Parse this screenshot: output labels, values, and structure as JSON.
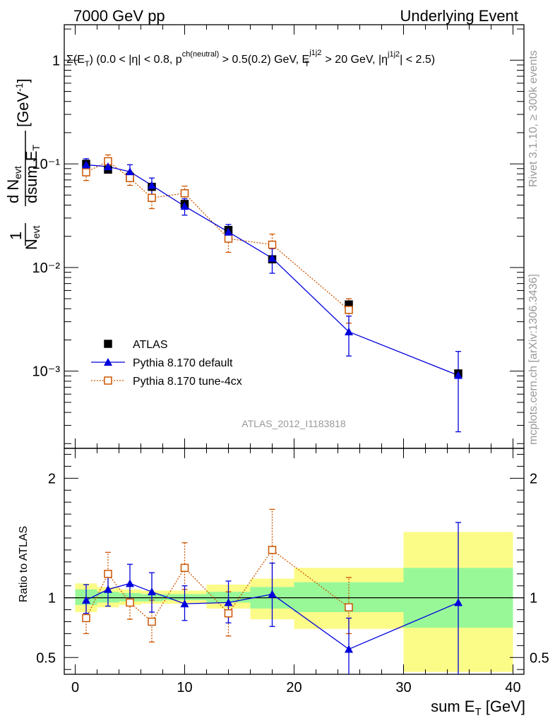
{
  "header": {
    "left": "7000 GeV pp",
    "right": "Underlying Event"
  },
  "side_labels": {
    "rivet": "Rivet 3.1.10, ≥ 300k events",
    "mcplots": "mcplots.cern.ch [arXiv:1306.3436]"
  },
  "analysis_label": "ATLAS_2012_I1183818",
  "colors": {
    "data": "#000000",
    "default": "#0000dd",
    "tune": "#cc5500",
    "band_inner": "#98f898",
    "band_outer": "#fbfb88"
  },
  "chart_data": [
    {
      "type": "scatter",
      "panel": "main",
      "annotation": "Σ(E_T) (0.0 < |η| < 0.8, p_T^ch(neutral) > 0.5(0.2) GeV, E_T^j1j2 > 20 GeV, |η^j1j2| < 2.5)",
      "ylabel": "1/N_evt dN_evt/dsum E_T [GeV^-1]",
      "xlim": [
        -1,
        41
      ],
      "ylim": [
        0.00018,
        2.2
      ],
      "yscale": "log",
      "yticks": [
        "10⁻³",
        "10⁻²",
        "10⁻¹",
        "1"
      ],
      "legend_position": "lower-left",
      "series": [
        {
          "name": "ATLAS",
          "x": [
            1,
            3,
            5,
            7,
            10,
            14,
            18,
            25,
            35
          ],
          "y": [
            0.1,
            0.088,
            0.075,
            0.06,
            0.041,
            0.023,
            0.012,
            0.0044,
            0.00095
          ]
        },
        {
          "name": "Pythia 8.170 default",
          "x": [
            1,
            3,
            5,
            7,
            10,
            14,
            18,
            25,
            35
          ],
          "y": [
            0.098,
            0.094,
            0.084,
            0.062,
            0.039,
            0.022,
            0.0123,
            0.0024,
            0.00091
          ],
          "yerr_low": [
            0.087,
            0.086,
            0.072,
            0.05,
            0.032,
            0.019,
            0.0088,
            0.0014,
            0.00026
          ],
          "yerr_high": [
            0.112,
            0.102,
            0.098,
            0.073,
            0.046,
            0.026,
            0.0152,
            0.0034,
            0.00155
          ]
        },
        {
          "name": "Pythia 8.170 tune-4cx",
          "x": [
            1,
            3,
            5,
            7,
            10,
            14,
            18,
            25,
            35
          ],
          "y": [
            0.083,
            0.106,
            0.073,
            0.047,
            0.052,
            0.019,
            0.0166,
            0.0039,
            null
          ],
          "yerr_low": [
            0.069,
            0.092,
            0.062,
            0.037,
            0.044,
            0.014,
            0.0122,
            0.0029,
            null
          ],
          "yerr_high": [
            0.098,
            0.122,
            0.084,
            0.058,
            0.061,
            0.024,
            0.021,
            0.005,
            null
          ]
        }
      ]
    },
    {
      "type": "line",
      "panel": "ratio",
      "ylabel": "Ratio to ATLAS",
      "xlabel": "sum E_T [GeV]",
      "xlim": [
        -1,
        41
      ],
      "ylim": [
        0.36,
        2.25
      ],
      "xticks": [
        "0",
        "10",
        "20",
        "30",
        "40"
      ],
      "yticks": [
        "0.5",
        "1",
        "2"
      ],
      "bands": [
        {
          "xmin": 0,
          "xmax": 2,
          "inner": [
            0.94,
            1.07
          ],
          "outer": [
            0.88,
            1.12
          ]
        },
        {
          "xmin": 2,
          "xmax": 4,
          "inner": [
            0.96,
            1.05
          ],
          "outer": [
            0.92,
            1.09
          ]
        },
        {
          "xmin": 4,
          "xmax": 6,
          "inner": [
            0.97,
            1.04
          ],
          "outer": [
            0.94,
            1.07
          ]
        },
        {
          "xmin": 6,
          "xmax": 8,
          "inner": [
            0.97,
            1.03
          ],
          "outer": [
            0.95,
            1.06
          ]
        },
        {
          "xmin": 8,
          "xmax": 12,
          "inner": [
            0.98,
            1.03
          ],
          "outer": [
            0.95,
            1.06
          ]
        },
        {
          "xmin": 12,
          "xmax": 16,
          "inner": [
            0.96,
            1.05
          ],
          "outer": [
            0.91,
            1.11
          ]
        },
        {
          "xmin": 16,
          "xmax": 20,
          "inner": [
            0.91,
            1.09
          ],
          "outer": [
            0.82,
            1.16
          ]
        },
        {
          "xmin": 20,
          "xmax": 30,
          "inner": [
            0.88,
            1.13
          ],
          "outer": [
            0.74,
            1.25
          ]
        },
        {
          "xmin": 30,
          "xmax": 40,
          "inner": [
            0.75,
            1.25
          ],
          "outer": [
            0.38,
            1.55
          ]
        }
      ],
      "series": [
        {
          "name": "Pythia 8.170 default",
          "x": [
            1,
            3,
            5,
            7,
            10,
            14,
            18,
            25,
            35
          ],
          "y": [
            0.98,
            1.07,
            1.12,
            1.05,
            0.95,
            0.96,
            1.03,
            0.57,
            0.96
          ],
          "yerr_low": [
            0.87,
            0.93,
            0.96,
            0.88,
            0.81,
            0.79,
            0.76,
            0.33,
            0.28
          ],
          "yerr_high": [
            1.11,
            1.21,
            1.28,
            1.21,
            1.1,
            1.14,
            1.29,
            0.83,
            1.63
          ]
        },
        {
          "name": "Pythia 8.170 tune-4cx",
          "x": [
            1,
            3,
            5,
            7,
            10,
            14,
            18,
            25
          ],
          "y": [
            0.83,
            1.2,
            0.96,
            0.8,
            1.25,
            0.87,
            1.4,
            0.92
          ],
          "yerr_low": [
            0.7,
            1.05,
            0.82,
            0.63,
            1.07,
            0.68,
            1.03,
            0.7
          ],
          "yerr_high": [
            0.96,
            1.38,
            1.1,
            0.98,
            1.46,
            1.05,
            1.74,
            1.17
          ]
        }
      ]
    }
  ]
}
